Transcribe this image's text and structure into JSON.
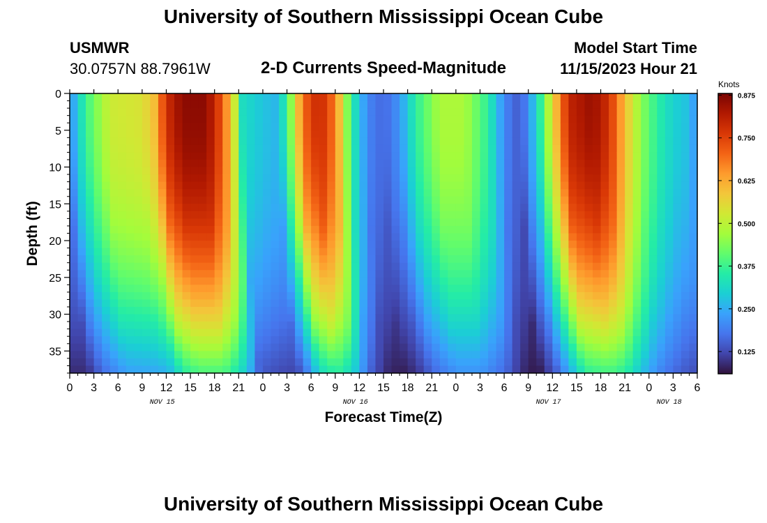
{
  "header": {
    "title": "University of Southern Mississippi Ocean Cube",
    "station": "USMWR",
    "coords": "30.0757N  88.7961W",
    "plot_title": "2-D Currents Speed-Magnitude",
    "model_start_label": "Model Start Time",
    "model_start_value": "11/15/2023 Hour 21"
  },
  "footer": {
    "title": "University of Southern Mississippi Ocean Cube"
  },
  "colors": {
    "colormap": [
      "#30123b",
      "#4145ab",
      "#4675ed",
      "#39a2fc",
      "#1bcfd4",
      "#24eca6",
      "#61fc6c",
      "#a4fc3b",
      "#d1e834",
      "#f3c63a",
      "#fe9b2d",
      "#f36315",
      "#d93806",
      "#b11901",
      "#7a0402"
    ]
  },
  "chart_data": {
    "type": "heatmap",
    "title": "2-D Currents Speed-Magnitude",
    "xlabel": "Forecast Time(Z)",
    "ylabel": "Depth (ft)",
    "x_hours": [
      0,
      78
    ],
    "x_tick_labels": [
      "0",
      "3",
      "6",
      "9",
      "12",
      "15",
      "18",
      "21",
      "0",
      "3",
      "6",
      "9",
      "12",
      "15",
      "18",
      "21",
      "0",
      "3",
      "6",
      "9",
      "12",
      "15",
      "18",
      "21",
      "0",
      "3",
      "6"
    ],
    "date_labels": [
      {
        "label": "NOV 15",
        "hour": 11.5
      },
      {
        "label": "NOV 16",
        "hour": 35.5
      },
      {
        "label": "NOV 17",
        "hour": 59.5
      },
      {
        "label": "NOV 18",
        "hour": 74.5
      }
    ],
    "ylim": [
      0,
      38
    ],
    "y_ticks": [
      0,
      5,
      10,
      15,
      20,
      25,
      30,
      35
    ],
    "colorbar": {
      "label": "Knots",
      "range": [
        0.06,
        0.88
      ],
      "ticks": [
        "0.125",
        "0.250",
        "0.375",
        "0.500",
        "0.625",
        "0.750",
        "0.875"
      ]
    },
    "surface_speed_knots": [
      {
        "hour": 0,
        "value": 0.2
      },
      {
        "hour": 1,
        "value": 0.3
      },
      {
        "hour": 2.5,
        "value": 0.4
      },
      {
        "hour": 5,
        "value": 0.52
      },
      {
        "hour": 9,
        "value": 0.54
      },
      {
        "hour": 10.5,
        "value": 0.6
      },
      {
        "hour": 12,
        "value": 0.78
      },
      {
        "hour": 14,
        "value": 0.86
      },
      {
        "hour": 17,
        "value": 0.86
      },
      {
        "hour": 19,
        "value": 0.72
      },
      {
        "hour": 20.5,
        "value": 0.52
      },
      {
        "hour": 21.5,
        "value": 0.32
      },
      {
        "hour": 24,
        "value": 0.28
      },
      {
        "hour": 26,
        "value": 0.26
      },
      {
        "hour": 27.5,
        "value": 0.45
      },
      {
        "hour": 29,
        "value": 0.7
      },
      {
        "hour": 31,
        "value": 0.8
      },
      {
        "hour": 33,
        "value": 0.68
      },
      {
        "hour": 35,
        "value": 0.36
      },
      {
        "hour": 37,
        "value": 0.2
      },
      {
        "hour": 39,
        "value": 0.16
      },
      {
        "hour": 41,
        "value": 0.22
      },
      {
        "hour": 43,
        "value": 0.36
      },
      {
        "hour": 46,
        "value": 0.48
      },
      {
        "hour": 49,
        "value": 0.48
      },
      {
        "hour": 52,
        "value": 0.36
      },
      {
        "hour": 54,
        "value": 0.2
      },
      {
        "hour": 56,
        "value": 0.14
      },
      {
        "hour": 58,
        "value": 0.3
      },
      {
        "hour": 60,
        "value": 0.55
      },
      {
        "hour": 62,
        "value": 0.8
      },
      {
        "hour": 65,
        "value": 0.85
      },
      {
        "hour": 67,
        "value": 0.78
      },
      {
        "hour": 69,
        "value": 0.6
      },
      {
        "hour": 71,
        "value": 0.45
      },
      {
        "hour": 73,
        "value": 0.36
      },
      {
        "hour": 75,
        "value": 0.3
      },
      {
        "hour": 76.5,
        "value": 0.28
      },
      {
        "hour": 78,
        "value": 0.22
      }
    ]
  }
}
